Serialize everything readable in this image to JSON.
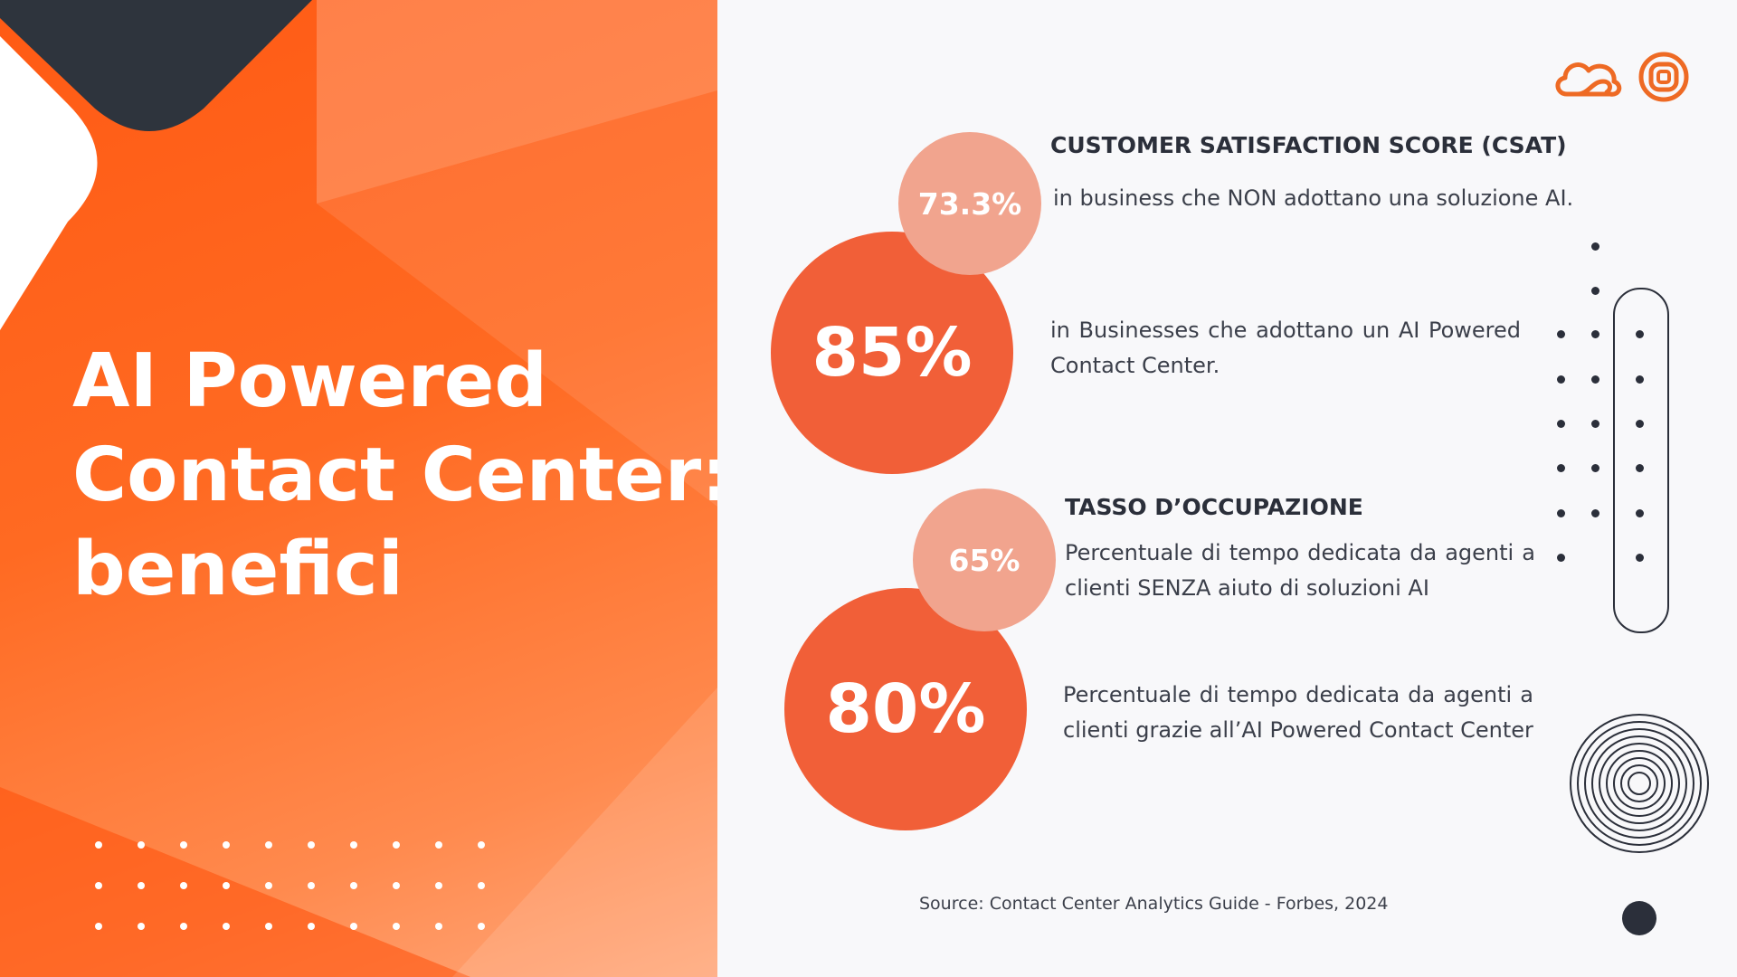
{
  "slide": {
    "title_lines": [
      "AI Powered",
      "Contact Center:",
      "benefici"
    ],
    "source": "Source: Contact Center Analytics Guide - Forbes, 2024"
  },
  "icons": [
    "cloud-icon",
    "target-icon",
    "concentric-circles-icon"
  ],
  "colors": {
    "accent_orange": "#ff5a14",
    "circle_big": "#f15f38",
    "circle_small": "#f1a48e",
    "dark": "#2b2f3a"
  },
  "csat": {
    "heading": "CUSTOMER SATISFACTION SCORE (CSAT)",
    "small_value": "73.3%",
    "small_text": "in business che NON adottano una soluzione AI.",
    "big_value": "85%",
    "big_text": "in Businesses che adottano un AI Powered Contact Center."
  },
  "occupancy": {
    "heading": "TASSO D’OCCUPAZIONE",
    "small_value": "65%",
    "small_text": "Percentuale di tempo dedicata da agenti a clienti SENZA aiuto di soluzioni AI",
    "big_value": "80%",
    "big_text": "Percentuale di tempo dedicata da agenti a clienti grazie all’AI Powered Contact Center"
  }
}
